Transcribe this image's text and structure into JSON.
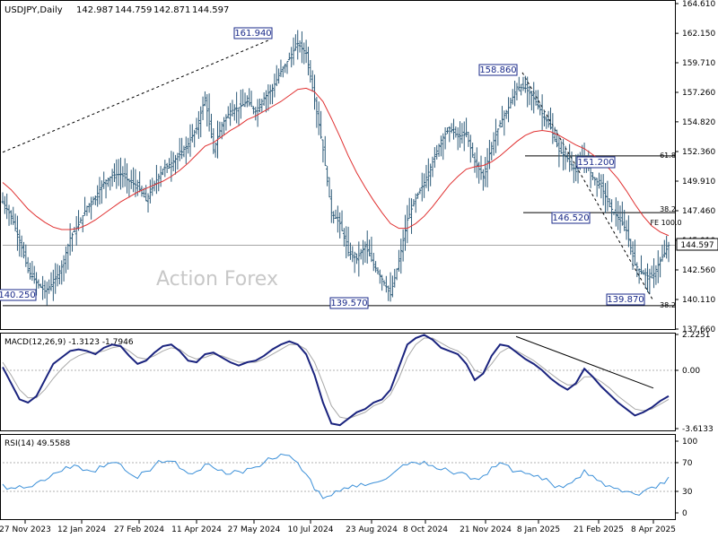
{
  "chart_data": {
    "type": "candlestick",
    "symbol_header": "USDJPY,Daily",
    "ohlc_header": [
      "142.987",
      "144.759",
      "142.871",
      "144.597"
    ],
    "watermark": "Action Forex",
    "price_axis_ticks": [
      "164.610",
      "162.150",
      "159.710",
      "157.260",
      "154.820",
      "152.360",
      "149.910",
      "147.460",
      "145.010",
      "142.560",
      "140.110",
      "137.660"
    ],
    "price_range": [
      137.66,
      164.61
    ],
    "current_price": "144.597",
    "x_tick_labels": [
      "27 Nov 2023",
      "12 Jan 2024",
      "27 Feb 2024",
      "11 Apr 2024",
      "27 May 2024",
      "10 Jul 2024",
      "23 Aug 2024",
      "8 Oct 2024",
      "21 Nov 2024",
      "8 Jan 2025",
      "21 Feb 2025",
      "8 Apr 2025"
    ],
    "price_closes_weekly": [
      148.2,
      147.0,
      145.0,
      142.5,
      141.5,
      140.8,
      141.5,
      142.8,
      145.2,
      146.3,
      147.8,
      148.6,
      149.8,
      150.4,
      150.5,
      149.9,
      149.5,
      148.3,
      149.7,
      150.9,
      151.4,
      152.1,
      153.0,
      154.3,
      156.8,
      152.5,
      154.6,
      155.7,
      156.0,
      156.5,
      155.7,
      156.8,
      157.6,
      159.0,
      160.1,
      161.3,
      160.5,
      156.7,
      152.5,
      147.3,
      146.4,
      144.0,
      143.5,
      144.5,
      143.0,
      141.8,
      140.5,
      143.3,
      146.7,
      148.5,
      149.8,
      151.5,
      153.3,
      154.3,
      153.6,
      153.8,
      151.5,
      150.3,
      152.8,
      154.7,
      156.0,
      157.7,
      157.6,
      156.8,
      155.5,
      154.3,
      152.4,
      151.8,
      150.7,
      151.8,
      150.2,
      149.5,
      147.8,
      146.9,
      145.8,
      143.0,
      142.2,
      141.9,
      143.3,
      144.6
    ],
    "moving_average": [
      149.8,
      149.2,
      148.4,
      147.6,
      147.0,
      146.5,
      146.1,
      145.9,
      145.9,
      146.0,
      146.3,
      146.7,
      147.2,
      147.7,
      148.2,
      148.6,
      149.0,
      149.3,
      149.6,
      149.9,
      150.3,
      150.8,
      151.4,
      152.1,
      152.8,
      153.1,
      153.6,
      154.1,
      154.5,
      155.0,
      155.3,
      155.7,
      156.1,
      156.5,
      157.0,
      157.5,
      157.6,
      157.3,
      156.5,
      155.1,
      153.6,
      152.0,
      150.6,
      149.4,
      148.3,
      147.3,
      146.4,
      146.0,
      146.0,
      146.4,
      147.0,
      147.8,
      148.7,
      149.6,
      150.3,
      150.9,
      151.1,
      151.2,
      151.5,
      152.0,
      152.6,
      153.2,
      153.7,
      154.0,
      154.1,
      154.0,
      153.7,
      153.3,
      152.9,
      152.6,
      152.1,
      151.6,
      150.9,
      150.1,
      149.1,
      148.0,
      147.0,
      146.2,
      145.7,
      145.4
    ],
    "price_labels": [
      {
        "text": "161.940",
        "role": "high"
      },
      {
        "text": "158.860",
        "role": "high"
      },
      {
        "text": "151.200",
        "role": "high"
      },
      {
        "text": "146.520",
        "role": "low"
      },
      {
        "text": "140.250",
        "role": "low"
      },
      {
        "text": "139.570",
        "role": "low"
      },
      {
        "text": "139.870",
        "role": "low"
      }
    ],
    "fib_labels": [
      "61.8",
      "38.2",
      "FE 100.0",
      "38.2"
    ],
    "macd": {
      "label": "MACD(12,26,9) -1.3123 -1.7946",
      "ticks": [
        "2.2251",
        "0.00",
        "-3.6133"
      ],
      "range": [
        -3.6133,
        2.2251
      ],
      "macd_values": [
        0.2,
        -0.8,
        -1.8,
        -2.0,
        -1.6,
        -0.6,
        0.4,
        0.8,
        1.2,
        1.3,
        1.2,
        1.0,
        1.4,
        1.6,
        1.5,
        0.9,
        0.4,
        0.6,
        1.1,
        1.5,
        1.6,
        1.2,
        0.6,
        0.5,
        1.0,
        1.1,
        0.8,
        0.5,
        0.3,
        0.5,
        0.6,
        0.9,
        1.3,
        1.6,
        1.8,
        1.6,
        1.0,
        -0.3,
        -2.0,
        -3.3,
        -3.4,
        -3.0,
        -2.6,
        -2.4,
        -2.0,
        -1.8,
        -1.2,
        0.2,
        1.6,
        2.0,
        2.2,
        1.9,
        1.4,
        1.2,
        1.0,
        0.4,
        -0.6,
        -0.2,
        0.9,
        1.6,
        1.5,
        1.1,
        0.7,
        0.4,
        0.0,
        -0.5,
        -0.9,
        -1.2,
        -0.8,
        0.1,
        -0.4,
        -1.0,
        -1.5,
        -2.0,
        -2.4,
        -2.8,
        -2.6,
        -2.3,
        -1.9,
        -1.6
      ],
      "signal_values": [
        0.5,
        -0.3,
        -1.2,
        -1.7,
        -1.7,
        -1.2,
        -0.5,
        0.1,
        0.6,
        0.9,
        1.1,
        1.1,
        1.2,
        1.4,
        1.5,
        1.2,
        0.8,
        0.7,
        0.9,
        1.2,
        1.4,
        1.3,
        0.9,
        0.7,
        0.8,
        1.0,
        0.9,
        0.7,
        0.5,
        0.5,
        0.5,
        0.7,
        1.0,
        1.3,
        1.6,
        1.6,
        1.3,
        0.5,
        -0.8,
        -2.2,
        -2.9,
        -3.0,
        -2.8,
        -2.6,
        -2.2,
        -2.0,
        -1.5,
        -0.5,
        0.8,
        1.6,
        2.0,
        2.0,
        1.7,
        1.4,
        1.2,
        0.8,
        0.0,
        -0.2,
        0.4,
        1.1,
        1.4,
        1.2,
        0.9,
        0.6,
        0.2,
        -0.2,
        -0.6,
        -0.9,
        -0.9,
        -0.4,
        -0.4,
        -0.7,
        -1.1,
        -1.6,
        -2.0,
        -2.4,
        -2.5,
        -2.4,
        -2.1,
        -1.8
      ]
    },
    "rsi": {
      "label": "RSI(14) 49.5588",
      "ticks": [
        "100",
        "70",
        "30",
        "0"
      ],
      "range": [
        0,
        100
      ],
      "values": [
        40,
        35,
        38,
        36,
        42,
        45,
        55,
        58,
        62,
        65,
        60,
        57,
        64,
        70,
        68,
        55,
        48,
        58,
        66,
        70,
        72,
        62,
        55,
        58,
        68,
        63,
        60,
        54,
        58,
        62,
        64,
        70,
        75,
        82,
        80,
        70,
        54,
        32,
        20,
        24,
        30,
        34,
        36,
        38,
        42,
        45,
        52,
        62,
        67,
        70,
        72,
        66,
        60,
        58,
        56,
        54,
        48,
        52,
        64,
        70,
        66,
        58,
        55,
        51,
        46,
        42,
        38,
        40,
        48,
        60,
        52,
        44,
        38,
        34,
        30,
        26,
        30,
        36,
        42,
        50
      ]
    }
  }
}
